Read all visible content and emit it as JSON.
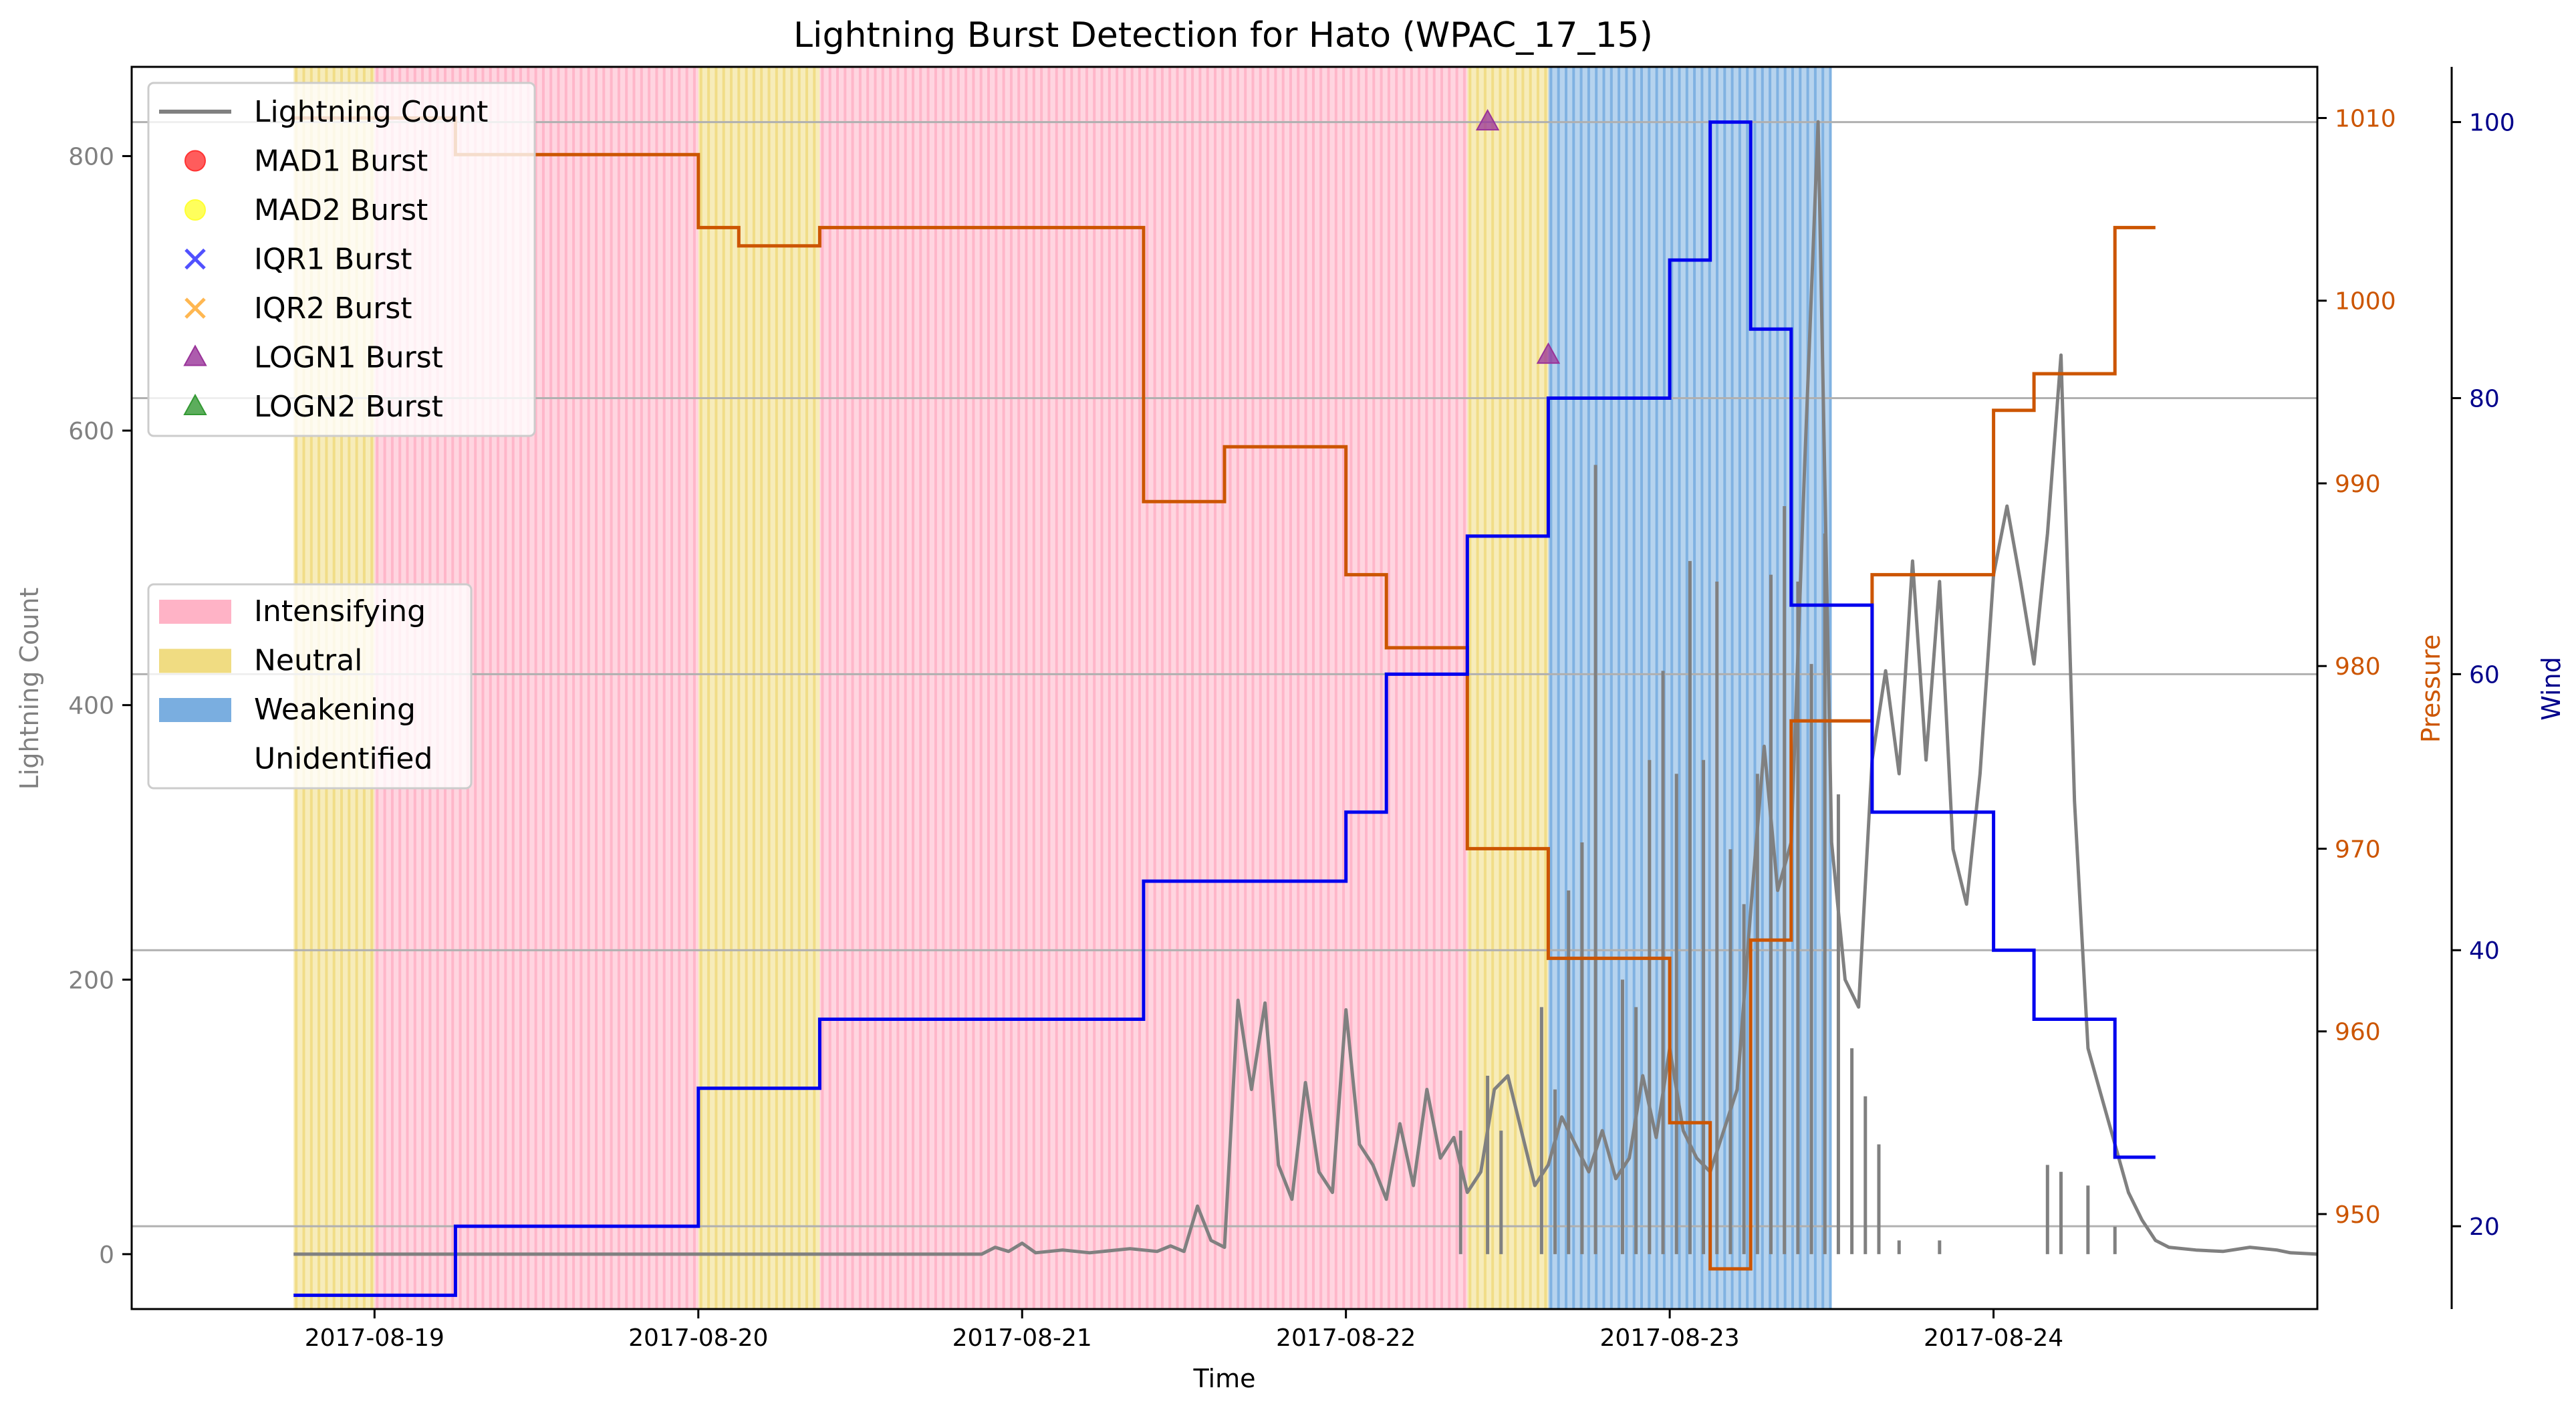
{
  "chart_data": {
    "type": "line",
    "title": "Lightning Burst Detection for Hato (WPAC_17_15)",
    "xlabel": "Time",
    "ylabel_left": "Lightning Count",
    "ylabel_pressure": "Pressure",
    "ylabel_wind": "Wind",
    "x_ticks": [
      "2017-08-19",
      "2017-08-20",
      "2017-08-21",
      "2017-08-22",
      "2017-08-23",
      "2017-08-24"
    ],
    "x_range": [
      "2017-08-18T06:00",
      "2017-08-25T00:00"
    ],
    "ylim_count": [
      -40,
      865
    ],
    "ylim_pressure": [
      944.8,
      1012.8
    ],
    "ylim_wind": [
      14,
      104
    ],
    "yticks_count": [
      0,
      200,
      400,
      600,
      800
    ],
    "yticks_pressure": [
      950,
      960,
      970,
      980,
      990,
      1000,
      1010
    ],
    "yticks_wind": [
      20,
      40,
      60,
      80,
      100
    ],
    "grid": "horizontal lines at wind ticks",
    "colors": {
      "lightning": "#808080",
      "pressure": "#cc5500",
      "wind": "#0000ee",
      "intensifying": "#ffb3c6",
      "neutral": "#f0dc82",
      "weakening": "#7aaee0",
      "mad1": "#ff3333",
      "mad2": "#ffff33",
      "iqr1": "#3333ff",
      "iqr2": "#ffaa33",
      "logn1": "#993399",
      "logn2": "#339933"
    },
    "legend_series": [
      {
        "label": "Lightning Count",
        "marker": "line",
        "color": "#808080"
      },
      {
        "label": "MAD1 Burst",
        "marker": "circle",
        "color": "#ff3333"
      },
      {
        "label": "MAD2 Burst",
        "marker": "circle",
        "color": "#ffff33"
      },
      {
        "label": "IQR1 Burst",
        "marker": "x",
        "color": "#3333ff"
      },
      {
        "label": "IQR2 Burst",
        "marker": "x",
        "color": "#ffaa33"
      },
      {
        "label": "LOGN1 Burst",
        "marker": "triangle",
        "color": "#993399"
      },
      {
        "label": "LOGN2 Burst",
        "marker": "triangle",
        "color": "#339933"
      }
    ],
    "legend_phases": [
      {
        "label": "Intensifying",
        "color": "#ffb3c6"
      },
      {
        "label": "Neutral",
        "color": "#f0dc82"
      },
      {
        "label": "Weakening",
        "color": "#7aaee0"
      },
      {
        "label": "Unidentified",
        "color": "#ffffff"
      }
    ],
    "phases": [
      {
        "phase": "neutral",
        "start": "2017-08-18T18:00",
        "end": "2017-08-19T00:00"
      },
      {
        "phase": "intensifying",
        "start": "2017-08-19T00:00",
        "end": "2017-08-20T00:00"
      },
      {
        "phase": "neutral",
        "start": "2017-08-20T00:00",
        "end": "2017-08-20T09:00"
      },
      {
        "phase": "intensifying",
        "start": "2017-08-20T09:00",
        "end": "2017-08-22T09:00"
      },
      {
        "phase": "neutral",
        "start": "2017-08-22T09:00",
        "end": "2017-08-22T15:00"
      },
      {
        "phase": "weakening",
        "start": "2017-08-22T15:00",
        "end": "2017-08-23T12:00"
      }
    ],
    "pressure_series": [
      {
        "t": "2017-08-18T18:00",
        "v": 1010
      },
      {
        "t": "2017-08-19T06:00",
        "v": 1008
      },
      {
        "t": "2017-08-20T00:00",
        "v": 1004
      },
      {
        "t": "2017-08-20T03:00",
        "v": 1003
      },
      {
        "t": "2017-08-20T09:00",
        "v": 1004
      },
      {
        "t": "2017-08-21T09:00",
        "v": 989
      },
      {
        "t": "2017-08-21T15:00",
        "v": 992
      },
      {
        "t": "2017-08-22T00:00",
        "v": 985
      },
      {
        "t": "2017-08-22T03:00",
        "v": 981
      },
      {
        "t": "2017-08-22T09:00",
        "v": 970
      },
      {
        "t": "2017-08-22T15:00",
        "v": 964
      },
      {
        "t": "2017-08-23T00:00",
        "v": 955
      },
      {
        "t": "2017-08-23T03:00",
        "v": 947
      },
      {
        "t": "2017-08-23T06:00",
        "v": 965
      },
      {
        "t": "2017-08-23T09:00",
        "v": 977
      },
      {
        "t": "2017-08-23T15:00",
        "v": 985
      },
      {
        "t": "2017-08-24T00:00",
        "v": 994
      },
      {
        "t": "2017-08-24T03:00",
        "v": 996
      },
      {
        "t": "2017-08-24T09:00",
        "v": 1004
      },
      {
        "t": "2017-08-24T12:00",
        "v": 1004
      }
    ],
    "wind_series": [
      {
        "t": "2017-08-18T18:00",
        "v": 15
      },
      {
        "t": "2017-08-19T06:00",
        "v": 20
      },
      {
        "t": "2017-08-20T00:00",
        "v": 30
      },
      {
        "t": "2017-08-20T09:00",
        "v": 35
      },
      {
        "t": "2017-08-21T09:00",
        "v": 45
      },
      {
        "t": "2017-08-22T00:00",
        "v": 50
      },
      {
        "t": "2017-08-22T03:00",
        "v": 60
      },
      {
        "t": "2017-08-22T09:00",
        "v": 70
      },
      {
        "t": "2017-08-22T15:00",
        "v": 80
      },
      {
        "t": "2017-08-23T00:00",
        "v": 90
      },
      {
        "t": "2017-08-23T03:00",
        "v": 100
      },
      {
        "t": "2017-08-23T06:00",
        "v": 85
      },
      {
        "t": "2017-08-23T09:00",
        "v": 65
      },
      {
        "t": "2017-08-23T15:00",
        "v": 50
      },
      {
        "t": "2017-08-24T00:00",
        "v": 40
      },
      {
        "t": "2017-08-24T03:00",
        "v": 35
      },
      {
        "t": "2017-08-24T09:00",
        "v": 25
      },
      {
        "t": "2017-08-24T12:00",
        "v": 25
      }
    ],
    "lightning_series": [
      {
        "t": "2017-08-18T18:00",
        "v": 0
      },
      {
        "t": "2017-08-20T21:00",
        "v": 0
      },
      {
        "t": "2017-08-20T22:00",
        "v": 5
      },
      {
        "t": "2017-08-20T23:00",
        "v": 2
      },
      {
        "t": "2017-08-21T00:00",
        "v": 8
      },
      {
        "t": "2017-08-21T01:00",
        "v": 1
      },
      {
        "t": "2017-08-21T03:00",
        "v": 3
      },
      {
        "t": "2017-08-21T05:00",
        "v": 1
      },
      {
        "t": "2017-08-21T08:00",
        "v": 4
      },
      {
        "t": "2017-08-21T10:00",
        "v": 2
      },
      {
        "t": "2017-08-21T11:00",
        "v": 6
      },
      {
        "t": "2017-08-21T12:00",
        "v": 2
      },
      {
        "t": "2017-08-21T13:00",
        "v": 35
      },
      {
        "t": "2017-08-21T14:00",
        "v": 10
      },
      {
        "t": "2017-08-21T15:00",
        "v": 5
      },
      {
        "t": "2017-08-21T16:00",
        "v": 185
      },
      {
        "t": "2017-08-21T17:00",
        "v": 120
      },
      {
        "t": "2017-08-21T18:00",
        "v": 183
      },
      {
        "t": "2017-08-21T19:00",
        "v": 65
      },
      {
        "t": "2017-08-21T20:00",
        "v": 40
      },
      {
        "t": "2017-08-21T21:00",
        "v": 125
      },
      {
        "t": "2017-08-21T22:00",
        "v": 60
      },
      {
        "t": "2017-08-21T23:00",
        "v": 45
      },
      {
        "t": "2017-08-22T00:00",
        "v": 178
      },
      {
        "t": "2017-08-22T01:00",
        "v": 80
      },
      {
        "t": "2017-08-22T02:00",
        "v": 65
      },
      {
        "t": "2017-08-22T03:00",
        "v": 40
      },
      {
        "t": "2017-08-22T04:00",
        "v": 95
      },
      {
        "t": "2017-08-22T05:00",
        "v": 50
      },
      {
        "t": "2017-08-22T06:00",
        "v": 120
      },
      {
        "t": "2017-08-22T07:00",
        "v": 70
      },
      {
        "t": "2017-08-22T08:00",
        "v": 85
      },
      {
        "t": "2017-08-22T09:00",
        "v": 45
      },
      {
        "t": "2017-08-22T10:00",
        "v": 60
      },
      {
        "t": "2017-08-22T11:00",
        "v": 120
      },
      {
        "t": "2017-08-22T12:00",
        "v": 130
      },
      {
        "t": "2017-08-22T13:00",
        "v": 90
      },
      {
        "t": "2017-08-22T14:00",
        "v": 50
      },
      {
        "t": "2017-08-22T15:00",
        "v": 65
      },
      {
        "t": "2017-08-22T16:00",
        "v": 100
      },
      {
        "t": "2017-08-22T17:00",
        "v": 80
      },
      {
        "t": "2017-08-22T18:00",
        "v": 60
      },
      {
        "t": "2017-08-22T19:00",
        "v": 90
      },
      {
        "t": "2017-08-22T20:00",
        "v": 55
      },
      {
        "t": "2017-08-22T21:00",
        "v": 70
      },
      {
        "t": "2017-08-22T22:00",
        "v": 130
      },
      {
        "t": "2017-08-22T23:00",
        "v": 85
      },
      {
        "t": "2017-08-23T00:00",
        "v": 150
      },
      {
        "t": "2017-08-23T01:00",
        "v": 90
      },
      {
        "t": "2017-08-23T02:00",
        "v": 70
      },
      {
        "t": "2017-08-23T03:00",
        "v": 60
      },
      {
        "t": "2017-08-23T04:00",
        "v": 90
      },
      {
        "t": "2017-08-23T05:00",
        "v": 120
      },
      {
        "t": "2017-08-23T06:00",
        "v": 250
      },
      {
        "t": "2017-08-23T07:00",
        "v": 370
      },
      {
        "t": "2017-08-23T08:00",
        "v": 265
      },
      {
        "t": "2017-08-23T09:00",
        "v": 300
      },
      {
        "t": "2017-08-23T10:00",
        "v": 575
      },
      {
        "t": "2017-08-23T11:00",
        "v": 825
      },
      {
        "t": "2017-08-23T12:00",
        "v": 300
      },
      {
        "t": "2017-08-23T13:00",
        "v": 200
      },
      {
        "t": "2017-08-23T14:00",
        "v": 180
      },
      {
        "t": "2017-08-23T15:00",
        "v": 360
      },
      {
        "t": "2017-08-23T16:00",
        "v": 425
      },
      {
        "t": "2017-08-23T17:00",
        "v": 350
      },
      {
        "t": "2017-08-23T18:00",
        "v": 505
      },
      {
        "t": "2017-08-23T19:00",
        "v": 360
      },
      {
        "t": "2017-08-23T20:00",
        "v": 490
      },
      {
        "t": "2017-08-23T21:00",
        "v": 295
      },
      {
        "t": "2017-08-23T22:00",
        "v": 255
      },
      {
        "t": "2017-08-23T23:00",
        "v": 350
      },
      {
        "t": "2017-08-24T00:00",
        "v": 495
      },
      {
        "t": "2017-08-24T01:00",
        "v": 545
      },
      {
        "t": "2017-08-24T02:00",
        "v": 490
      },
      {
        "t": "2017-08-24T03:00",
        "v": 430
      },
      {
        "t": "2017-08-24T04:00",
        "v": 525
      },
      {
        "t": "2017-08-24T05:00",
        "v": 655
      },
      {
        "t": "2017-08-24T06:00",
        "v": 330
      },
      {
        "t": "2017-08-24T07:00",
        "v": 150
      },
      {
        "t": "2017-08-24T08:00",
        "v": 115
      },
      {
        "t": "2017-08-24T09:00",
        "v": 80
      },
      {
        "t": "2017-08-24T10:00",
        "v": 45
      },
      {
        "t": "2017-08-24T11:00",
        "v": 25
      },
      {
        "t": "2017-08-24T12:00",
        "v": 10
      },
      {
        "t": "2017-08-24T13:00",
        "v": 5
      },
      {
        "t": "2017-08-24T15:00",
        "v": 3
      },
      {
        "t": "2017-08-24T17:00",
        "v": 2
      },
      {
        "t": "2017-08-24T19:00",
        "v": 5
      },
      {
        "t": "2017-08-24T21:00",
        "v": 3
      },
      {
        "t": "2017-08-24T22:00",
        "v": 1
      },
      {
        "t": "2017-08-25T00:00",
        "v": 0
      }
    ],
    "lightning_peaks": [
      {
        "t": "2017-08-22T08:30",
        "v": 90
      },
      {
        "t": "2017-08-22T10:30",
        "v": 130
      },
      {
        "t": "2017-08-22T11:30",
        "v": 90
      },
      {
        "t": "2017-08-22T14:30",
        "v": 180
      },
      {
        "t": "2017-08-22T15:30",
        "v": 120
      },
      {
        "t": "2017-08-22T16:30",
        "v": 265
      },
      {
        "t": "2017-08-22T17:30",
        "v": 300
      },
      {
        "t": "2017-08-22T18:30",
        "v": 575
      },
      {
        "t": "2017-08-22T20:30",
        "v": 200
      },
      {
        "t": "2017-08-22T21:30",
        "v": 180
      },
      {
        "t": "2017-08-22T22:30",
        "v": 360
      },
      {
        "t": "2017-08-22T23:30",
        "v": 425
      },
      {
        "t": "2017-08-23T00:30",
        "v": 350
      },
      {
        "t": "2017-08-23T01:30",
        "v": 505
      },
      {
        "t": "2017-08-23T02:30",
        "v": 360
      },
      {
        "t": "2017-08-23T03:30",
        "v": 490
      },
      {
        "t": "2017-08-23T04:30",
        "v": 295
      },
      {
        "t": "2017-08-23T05:30",
        "v": 255
      },
      {
        "t": "2017-08-23T06:30",
        "v": 350
      },
      {
        "t": "2017-08-23T07:30",
        "v": 495
      },
      {
        "t": "2017-08-23T08:30",
        "v": 545
      },
      {
        "t": "2017-08-23T09:30",
        "v": 490
      },
      {
        "t": "2017-08-23T10:30",
        "v": 430
      },
      {
        "t": "2017-08-23T11:30",
        "v": 525
      },
      {
        "t": "2017-08-23T12:30",
        "v": 335
      },
      {
        "t": "2017-08-23T13:30",
        "v": 150
      },
      {
        "t": "2017-08-23T14:30",
        "v": 115
      },
      {
        "t": "2017-08-23T15:30",
        "v": 80
      },
      {
        "t": "2017-08-23T17:00",
        "v": 10
      },
      {
        "t": "2017-08-23T20:00",
        "v": 10
      },
      {
        "t": "2017-08-24T04:00",
        "v": 65
      },
      {
        "t": "2017-08-24T05:00",
        "v": 60
      },
      {
        "t": "2017-08-24T07:00",
        "v": 50
      },
      {
        "t": "2017-08-24T09:00",
        "v": 20
      }
    ],
    "logn1_bursts": [
      {
        "t": "2017-08-22T10:30",
        "v": 825
      },
      {
        "t": "2017-08-22T15:00",
        "v": 655
      }
    ]
  }
}
